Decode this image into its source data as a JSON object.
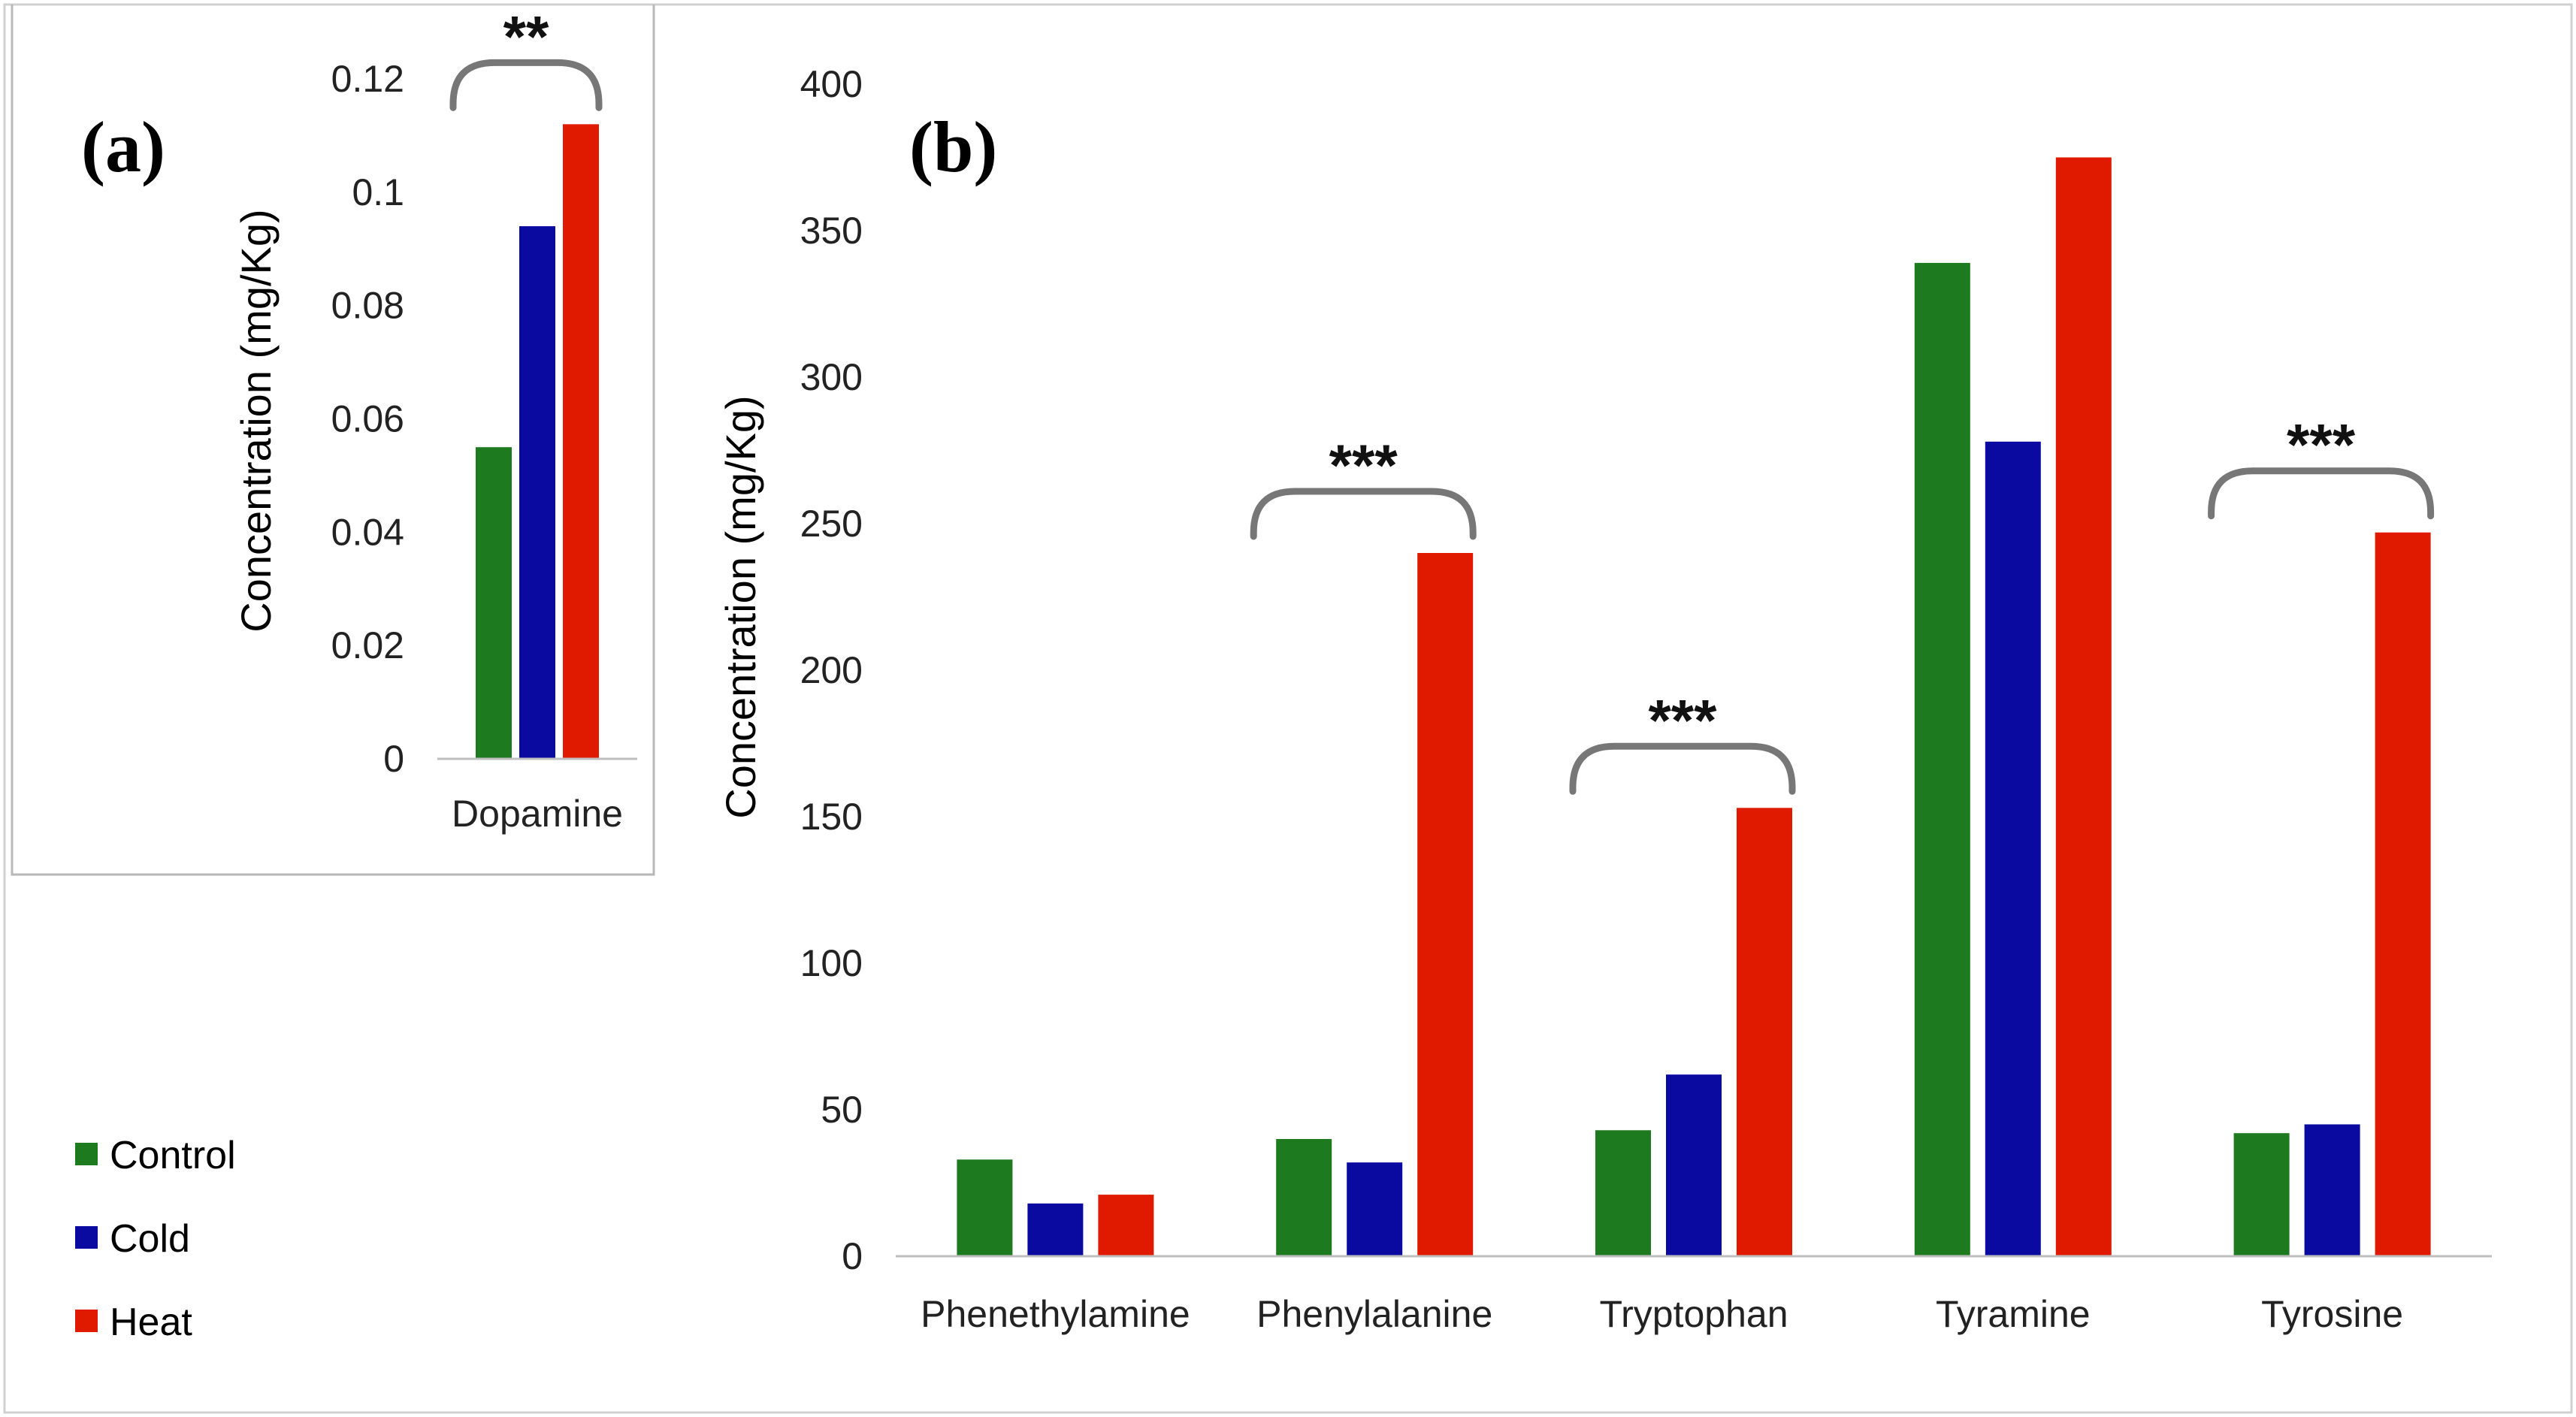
{
  "colors": {
    "control": "#1e7a1e",
    "cold": "#0a0aa0",
    "heat": "#e01a00",
    "axis": "#bfbfbf",
    "text": "#222222",
    "panel_letter": "#1a1ad8",
    "bracket": "#777777"
  },
  "legend": {
    "items": [
      {
        "label": "Control",
        "color": "#1e7a1e"
      },
      {
        "label": "Cold",
        "color": "#0a0aa0"
      },
      {
        "label": "Heat",
        "color": "#e01a00"
      }
    ]
  },
  "chart_data": [
    {
      "panel": "(a)",
      "type": "bar",
      "title": "",
      "ylabel": "Concentration  (mg/Kg)",
      "xlabel": "",
      "ylim": [
        0,
        0.12
      ],
      "yticks": [
        0,
        0.02,
        0.04,
        0.06,
        0.08,
        0.1,
        0.12
      ],
      "ytick_labels": [
        "0",
        "0.02",
        "0.04",
        "0.06",
        "0.08",
        "0.1",
        "0.12"
      ],
      "categories": [
        "Dopamine"
      ],
      "series": [
        {
          "name": "Control",
          "values": [
            0.055
          ]
        },
        {
          "name": "Cold",
          "values": [
            0.094
          ]
        },
        {
          "name": "Heat",
          "values": [
            0.112
          ]
        }
      ],
      "significance": [
        {
          "category": "Dopamine",
          "label": "**"
        }
      ]
    },
    {
      "panel": "(b)",
      "type": "bar",
      "title": "",
      "ylabel": "Concentration  (mg/Kg)",
      "xlabel": "",
      "ylim": [
        0,
        400
      ],
      "yticks": [
        0,
        50,
        100,
        150,
        200,
        250,
        300,
        350,
        400
      ],
      "ytick_labels": [
        "0",
        "50",
        "100",
        "150",
        "200",
        "250",
        "300",
        "350",
        "400"
      ],
      "categories": [
        "Phenethylamine",
        "Phenylalanine",
        "Tryptophan",
        "Tyramine",
        "Tyrosine"
      ],
      "series": [
        {
          "name": "Control",
          "values": [
            33,
            40,
            43,
            339,
            42
          ]
        },
        {
          "name": "Cold",
          "values": [
            18,
            32,
            62,
            278,
            45
          ]
        },
        {
          "name": "Heat",
          "values": [
            21,
            240,
            153,
            375,
            247
          ]
        }
      ],
      "significance": [
        {
          "category": "Phenylalanine",
          "label": "***"
        },
        {
          "category": "Tryptophan",
          "label": "***"
        },
        {
          "category": "Tyrosine",
          "label": "***"
        }
      ]
    }
  ]
}
